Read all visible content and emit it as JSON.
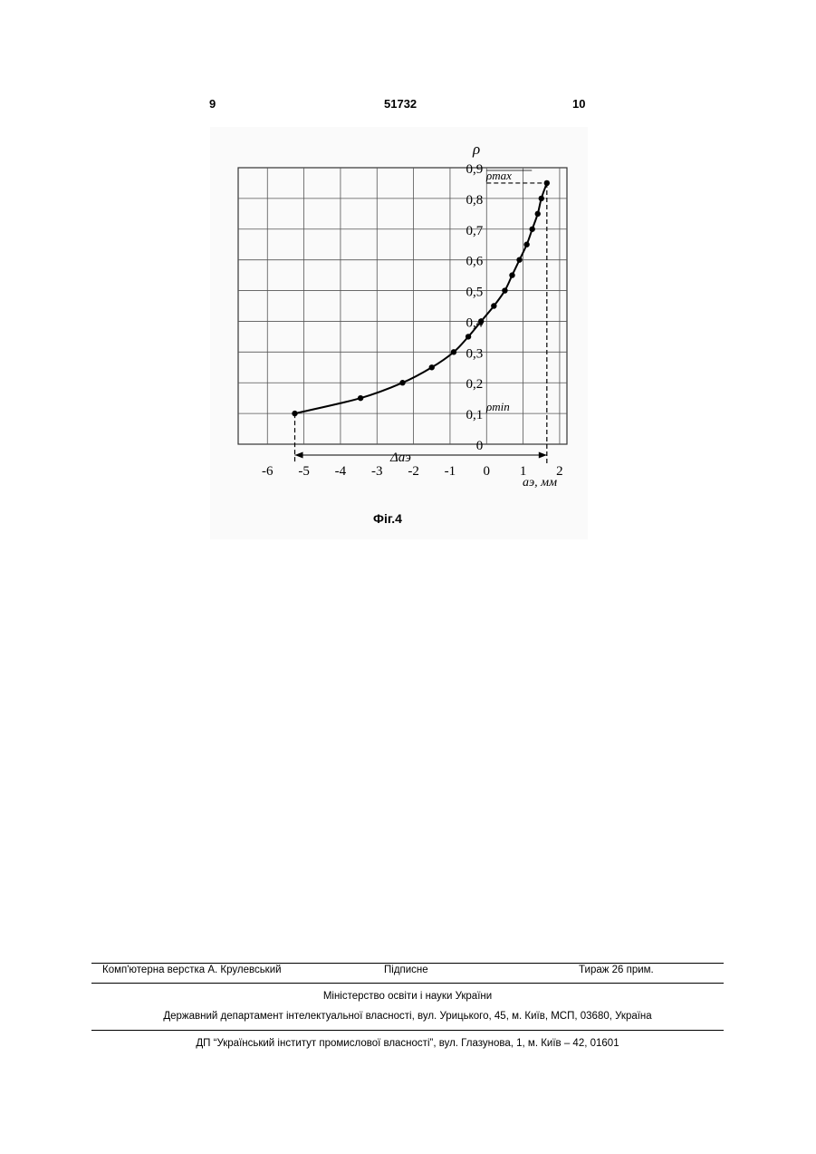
{
  "header": {
    "page_left": "9",
    "patent_number": "51732",
    "page_right": "10"
  },
  "figure": {
    "caption": "Фіг.4",
    "rho_max_label": "ρmax",
    "rho_min_label": "ρmin",
    "range_label": "Δaэ"
  },
  "chart_data": {
    "type": "line",
    "title": "",
    "ylabel": "ρ",
    "xlabel": "aэ, мм",
    "xlim": [
      -6,
      2
    ],
    "ylim": [
      0,
      0.9
    ],
    "x_ticks": [
      -6,
      -5,
      -4,
      -3,
      -2,
      -1,
      0,
      1,
      2
    ],
    "x_tick_labels": [
      "-6",
      "-5",
      "-4",
      "-3",
      "-2",
      "-1",
      "0",
      "1",
      "2"
    ],
    "y_ticks": [
      0,
      0.1,
      0.2,
      0.3,
      0.4,
      0.5,
      0.6,
      0.7,
      0.8,
      0.9
    ],
    "y_tick_labels": [
      "0",
      "0,1",
      "0,2",
      "0,3",
      "0,4",
      "0,5",
      "0,6",
      "0,7",
      "0,8",
      "0,9"
    ],
    "grid": true,
    "series": [
      {
        "x": [
          -5.25,
          -3.45,
          -2.3,
          -1.5,
          -0.9,
          -0.5,
          -0.15,
          0.2,
          0.5,
          0.7,
          0.9,
          1.1,
          1.25,
          1.4,
          1.5,
          1.65
        ],
        "y": [
          0.1,
          0.15,
          0.2,
          0.25,
          0.3,
          0.35,
          0.4,
          0.45,
          0.5,
          0.55,
          0.6,
          0.65,
          0.7,
          0.75,
          0.8,
          0.85
        ]
      }
    ],
    "annotations": {
      "rho_max": 0.85,
      "rho_min": 0.1,
      "x_at_rho_max": 1.65,
      "x_at_rho_min": -5.25
    }
  },
  "footer": {
    "typesetter": "Комп'ютерна верстка А. Крулевський",
    "signed": "Підписне",
    "circulation": "Тираж 26 прим.",
    "ministry": "Міністерство освіти і науки України",
    "department": "Державний департамент інтелектуальної власності, вул. Урицького, 45, м. Київ, МСП, 03680, Україна",
    "institute": "ДП “Український інститут промислової власності”, вул. Глазунова, 1, м. Київ – 42, 01601"
  }
}
